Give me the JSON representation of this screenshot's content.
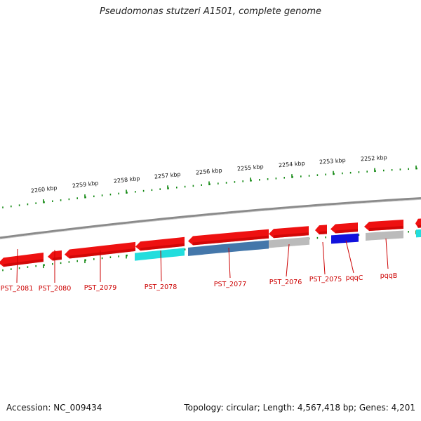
{
  "title": "Pseudomonas stutzeri A1501, complete genome",
  "footer": {
    "accession": "Accession: NC_009434",
    "summary": "Topology: circular; Length: 4,567,418 bp; Genes: 4,201"
  },
  "colors": {
    "gene": "#ee1111",
    "gene_label": "#cc0000",
    "backbone": "#888888",
    "tick": "#118811",
    "feature_cyan": "#22dddd",
    "feature_steel": "#4477aa",
    "feature_gray": "#bbbbbb",
    "feature_blue": "#1111dd"
  },
  "scale": {
    "unit_labels": [
      "2260 kbp",
      "2259 kbp",
      "2258 kbp",
      "2257 kbp",
      "2256 kbp",
      "2255 kbp",
      "2254 kbp",
      "2253 kbp",
      "2252 kbp"
    ]
  },
  "genes": [
    {
      "label": "PST_2081"
    },
    {
      "label": "PST_2080"
    },
    {
      "label": "PST_2079"
    },
    {
      "label": "PST_2078"
    },
    {
      "label": "PST_2077"
    },
    {
      "label": "PST_2076"
    },
    {
      "label": "PST_2075"
    },
    {
      "label": "pqqC"
    },
    {
      "label": "pqqB"
    }
  ]
}
